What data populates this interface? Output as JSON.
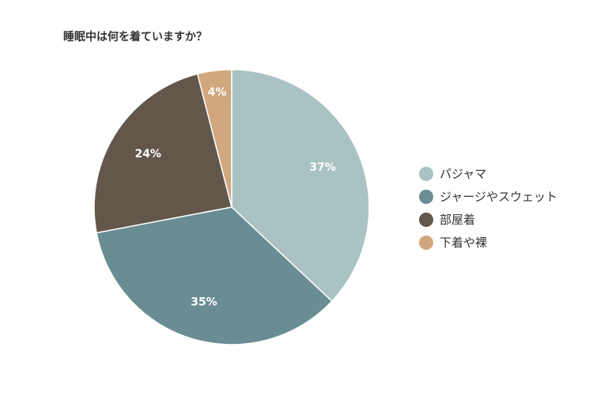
{
  "chart_data": {
    "type": "pie",
    "title": "睡眠中は何を着ていますか？",
    "categories": [
      "パジャマ",
      "ジャージやスウェット",
      "部屋着",
      "下着や裸"
    ],
    "values": [
      37,
      35,
      24,
      4
    ],
    "labels": [
      "37%",
      "35%",
      "24%",
      "4%"
    ],
    "colors": [
      "#a9c2c2",
      "#6a8d93",
      "#63574c",
      "#d1a780"
    ],
    "unit": "%",
    "legend_position": "right",
    "start": "top, clockwise"
  }
}
